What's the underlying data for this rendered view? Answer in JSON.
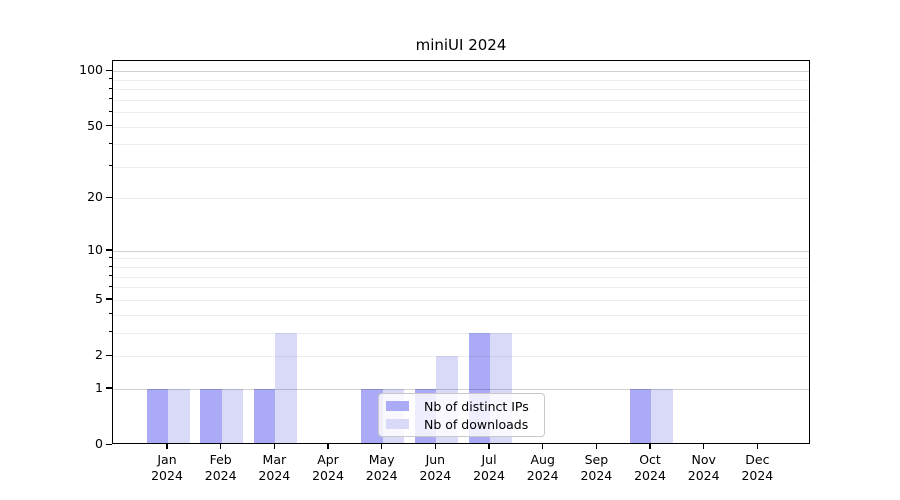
{
  "chart_data": {
    "type": "bar",
    "title": "miniUI 2024",
    "categories": [
      "Jan",
      "Feb",
      "Mar",
      "Apr",
      "May",
      "Jun",
      "Jul",
      "Aug",
      "Sep",
      "Oct",
      "Nov",
      "Dec"
    ],
    "year_label": "2024",
    "series": [
      {
        "name": "Nb of distinct IPs",
        "color": "#aaaaf7",
        "values": [
          1,
          1,
          1,
          0,
          1,
          1,
          3,
          0,
          0,
          1,
          0,
          0
        ]
      },
      {
        "name": "Nb of downloads",
        "color": "#d9daf8",
        "values": [
          1,
          1,
          3,
          0,
          1,
          2,
          3,
          0,
          0,
          1,
          0,
          0
        ]
      }
    ],
    "xlabel": "",
    "ylabel": "",
    "yscale": "log1p",
    "ylim": [
      0,
      113
    ],
    "yticks": [
      0,
      1,
      2,
      5,
      10,
      20,
      50,
      100
    ],
    "minor_grid_values": [
      2,
      3,
      4,
      5,
      6,
      7,
      8,
      9,
      20,
      30,
      40,
      50,
      60,
      70,
      80,
      90
    ],
    "major_grid_values": [
      1,
      10,
      100
    ],
    "grid": true,
    "legend_position": "lower center",
    "background_color": "#ffffff"
  }
}
